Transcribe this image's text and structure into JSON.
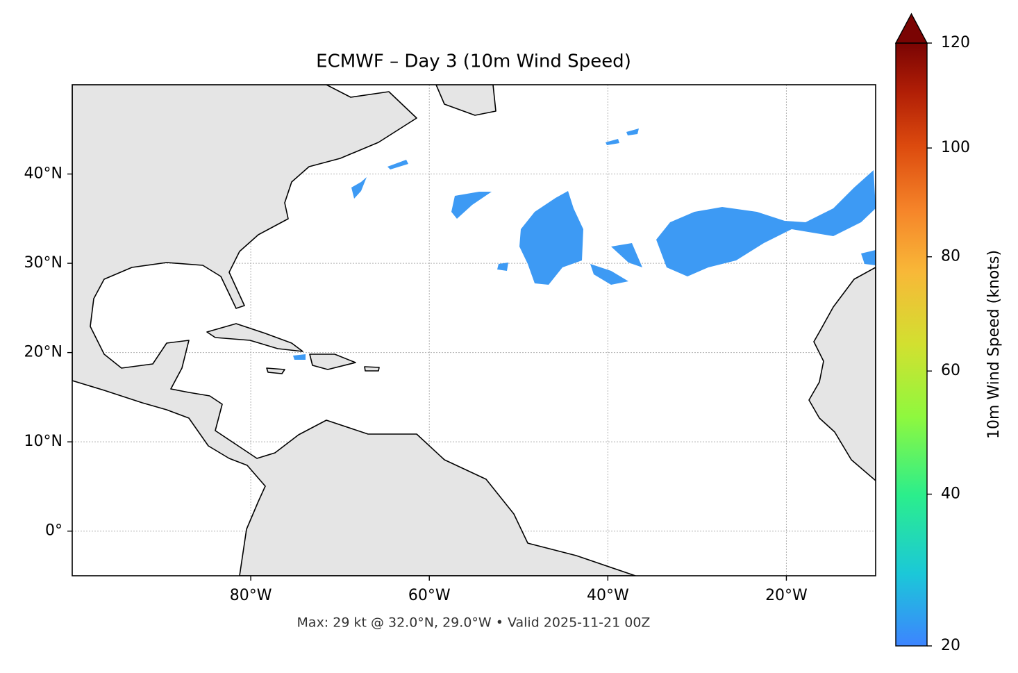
{
  "chart_data": {
    "type": "map",
    "title": "ECMWF – Day 3 (10m Wind Speed)",
    "xlim": [
      -100,
      -10
    ],
    "ylim": [
      -5,
      50
    ],
    "xticks": [
      {
        "value": -80,
        "label": "80°W"
      },
      {
        "value": -60,
        "label": "60°W"
      },
      {
        "value": -40,
        "label": "40°W"
      },
      {
        "value": -20,
        "label": "20°W"
      }
    ],
    "yticks": [
      {
        "value": 0,
        "label": "0°"
      },
      {
        "value": 10,
        "label": "10°N"
      },
      {
        "value": 20,
        "label": "20°N"
      },
      {
        "value": 30,
        "label": "30°N"
      },
      {
        "value": 40,
        "label": "40°N"
      }
    ],
    "grid": true,
    "colorbar": {
      "label": "10m Wind Speed (knots)",
      "lim": [
        20,
        120
      ],
      "ticks": [
        20,
        40,
        60,
        80,
        100,
        120
      ],
      "gamma": 0.857,
      "extend": "max"
    },
    "footnote": "Max: 29 kt @ 32.0°N, 29.0°W • Valid 2025-11-21 00Z"
  }
}
